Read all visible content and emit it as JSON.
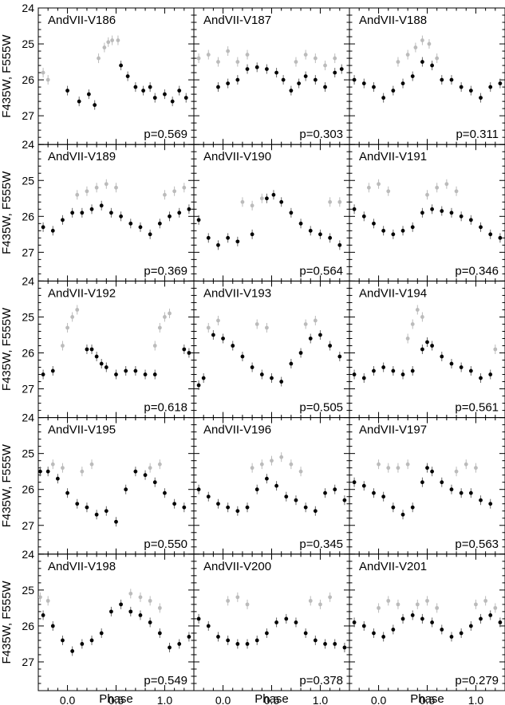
{
  "figure": {
    "ylabel": "F435W, F555W",
    "xlabel": "Phase",
    "colors": {
      "f555w": "#000000",
      "f435w": "#bbbbbb",
      "frame": "#000000"
    }
  },
  "chart_data": {
    "type": "scatter",
    "layout": "5x3 panel grid",
    "description_axes": "x = phase, y = magnitude (inverted)",
    "xlim": [
      -0.3,
      1.3
    ],
    "ylim": [
      27.8,
      24.0
    ],
    "xticks": [
      0.0,
      0.5,
      1.0
    ],
    "xtick_labels": [
      "0.0",
      "0.5",
      "1.0"
    ],
    "yticks": [
      24,
      25,
      26,
      27
    ],
    "ytick_labels": [
      "24",
      "25",
      "26",
      "27"
    ],
    "panels": [
      {
        "name": "AndVII-V186",
        "period": "p=0.569",
        "f555w": {
          "x": [
            0.0,
            0.12,
            0.22,
            0.28,
            0.55,
            0.62,
            0.7,
            0.78,
            0.85,
            0.9,
            1.0,
            1.08,
            1.15,
            1.22
          ],
          "y": [
            26.3,
            26.6,
            26.4,
            26.7,
            25.6,
            25.9,
            26.2,
            26.3,
            26.2,
            26.5,
            26.4,
            26.6,
            26.3,
            26.5
          ]
        },
        "f435w": {
          "x": [
            0.32,
            0.38,
            0.42,
            0.46,
            0.52,
            -0.25,
            -0.2
          ],
          "y": [
            25.4,
            25.1,
            24.95,
            24.9,
            24.9,
            25.8,
            26.0
          ]
        }
      },
      {
        "name": "AndVII-V187",
        "period": "p=0.303",
        "f555w": {
          "x": [
            -0.05,
            0.05,
            0.15,
            0.25,
            0.35,
            0.45,
            0.55,
            0.62,
            0.7,
            0.78,
            0.85,
            0.95,
            1.05,
            1.15,
            1.22
          ],
          "y": [
            26.2,
            26.1,
            26.0,
            25.7,
            25.65,
            25.7,
            25.8,
            26.0,
            26.3,
            26.1,
            25.9,
            26.0,
            26.2,
            25.8,
            25.7
          ]
        },
        "f435w": {
          "x": [
            -0.25,
            -0.15,
            -0.05,
            0.05,
            0.15,
            0.25,
            0.75,
            0.85,
            0.95,
            1.05,
            1.15
          ],
          "y": [
            25.4,
            25.3,
            25.5,
            25.2,
            25.5,
            25.3,
            25.5,
            25.3,
            25.4,
            25.6,
            25.4
          ]
        }
      },
      {
        "name": "AndVII-V188",
        "period": "p=0.311",
        "f555w": {
          "x": [
            -0.25,
            -0.15,
            -0.05,
            0.05,
            0.15,
            0.25,
            0.35,
            0.45,
            0.55,
            0.65,
            0.75,
            0.85,
            0.95,
            1.05,
            1.15,
            1.25
          ],
          "y": [
            26.0,
            26.1,
            26.2,
            26.5,
            26.3,
            26.1,
            25.9,
            25.5,
            25.6,
            26.0,
            26.0,
            26.2,
            26.3,
            26.5,
            26.2,
            26.1
          ]
        },
        "f435w": {
          "x": [
            0.2,
            0.3,
            0.38,
            0.45,
            0.52,
            0.6
          ],
          "y": [
            25.5,
            25.3,
            25.1,
            24.9,
            25.0,
            25.4
          ]
        }
      },
      {
        "name": "AndVII-V189",
        "period": "p=0.369",
        "f555w": {
          "x": [
            -0.25,
            -0.15,
            -0.05,
            0.05,
            0.15,
            0.25,
            0.35,
            0.45,
            0.55,
            0.65,
            0.75,
            0.85,
            0.95,
            1.05,
            1.15,
            1.25
          ],
          "y": [
            26.3,
            26.4,
            26.1,
            25.9,
            25.9,
            25.8,
            25.7,
            25.9,
            26.0,
            26.2,
            26.3,
            26.5,
            26.2,
            26.0,
            25.9,
            25.8
          ]
        },
        "f435w": {
          "x": [
            0.1,
            0.2,
            0.3,
            0.4,
            0.5,
            1.0,
            1.1,
            1.2
          ],
          "y": [
            25.4,
            25.3,
            25.2,
            25.1,
            25.2,
            25.4,
            25.3,
            25.2
          ]
        }
      },
      {
        "name": "AndVII-V190",
        "period": "p=0.564",
        "f555w": {
          "x": [
            -0.25,
            -0.15,
            -0.05,
            0.05,
            0.15,
            0.3,
            0.45,
            0.52,
            0.6,
            0.7,
            0.8,
            0.9,
            1.0,
            1.1,
            1.2
          ],
          "y": [
            26.1,
            26.6,
            26.8,
            26.6,
            26.7,
            26.5,
            25.5,
            25.4,
            25.6,
            25.9,
            26.2,
            26.4,
            26.5,
            26.6,
            26.8
          ]
        },
        "f435w": {
          "x": [
            0.2,
            0.3,
            0.4,
            1.1,
            1.2
          ],
          "y": [
            25.6,
            25.7,
            25.5,
            25.6,
            25.6
          ]
        }
      },
      {
        "name": "AndVII-V191",
        "period": "p=0.346",
        "f555w": {
          "x": [
            -0.25,
            -0.15,
            -0.05,
            0.05,
            0.15,
            0.25,
            0.35,
            0.45,
            0.55,
            0.65,
            0.75,
            0.85,
            0.95,
            1.05,
            1.15,
            1.25
          ],
          "y": [
            25.8,
            26.0,
            26.2,
            26.4,
            26.5,
            26.4,
            26.3,
            25.9,
            25.8,
            25.85,
            25.9,
            26.0,
            26.1,
            26.3,
            26.5,
            26.6
          ]
        },
        "f435w": {
          "x": [
            -0.1,
            0.0,
            0.1,
            0.5,
            0.6,
            0.7,
            0.8
          ],
          "y": [
            25.2,
            25.1,
            25.3,
            25.4,
            25.2,
            25.1,
            25.3
          ]
        }
      },
      {
        "name": "AndVII-V192",
        "period": "p=0.618",
        "f555w": {
          "x": [
            -0.25,
            -0.15,
            0.2,
            0.25,
            0.3,
            0.35,
            0.4,
            0.5,
            0.6,
            0.7,
            0.8,
            0.9,
            1.2,
            1.25
          ],
          "y": [
            26.6,
            26.5,
            25.9,
            25.9,
            26.1,
            26.3,
            26.4,
            26.6,
            26.5,
            26.5,
            26.6,
            26.6,
            25.9,
            26.0
          ]
        },
        "f435w": {
          "x": [
            -0.05,
            0.0,
            0.05,
            0.1,
            0.9,
            0.95,
            1.0,
            1.05
          ],
          "y": [
            25.8,
            25.3,
            25.0,
            24.8,
            25.8,
            25.3,
            25.0,
            24.9
          ]
        }
      },
      {
        "name": "AndVII-V193",
        "period": "p=0.505",
        "f555w": {
          "x": [
            -0.25,
            -0.2,
            -0.1,
            0.0,
            0.1,
            0.2,
            0.3,
            0.4,
            0.5,
            0.6,
            0.7,
            0.8,
            0.9,
            1.0,
            1.1,
            1.2
          ],
          "y": [
            26.9,
            26.7,
            25.5,
            25.6,
            25.8,
            26.1,
            26.4,
            26.6,
            26.7,
            26.8,
            26.3,
            26.0,
            25.6,
            25.5,
            25.8,
            26.1
          ]
        },
        "f435w": {
          "x": [
            -0.15,
            -0.05,
            0.35,
            0.45,
            0.85,
            0.95
          ],
          "y": [
            25.3,
            25.1,
            25.2,
            25.3,
            25.2,
            25.1
          ]
        }
      },
      {
        "name": "AndVII-V194",
        "period": "p=0.561",
        "f555w": {
          "x": [
            -0.25,
            -0.15,
            -0.05,
            0.05,
            0.15,
            0.25,
            0.35,
            0.45,
            0.5,
            0.55,
            0.65,
            0.75,
            0.85,
            0.95,
            1.05,
            1.15
          ],
          "y": [
            26.6,
            26.7,
            26.5,
            26.4,
            26.5,
            26.6,
            26.5,
            25.9,
            25.7,
            25.8,
            26.1,
            26.3,
            26.4,
            26.5,
            26.7,
            26.6
          ]
        },
        "f435w": {
          "x": [
            0.3,
            0.35,
            0.4,
            0.45,
            1.2
          ],
          "y": [
            25.6,
            25.2,
            24.8,
            25.0,
            25.9
          ]
        }
      },
      {
        "name": "AndVII-V195",
        "period": "p=0.550",
        "f555w": {
          "x": [
            -0.28,
            -0.2,
            -0.1,
            0.0,
            0.1,
            0.2,
            0.3,
            0.4,
            0.5,
            0.6,
            0.7,
            0.8,
            0.9,
            1.0,
            1.1,
            1.2
          ],
          "y": [
            25.5,
            25.5,
            25.7,
            26.1,
            26.4,
            26.5,
            26.7,
            26.6,
            26.9,
            26.0,
            25.5,
            25.6,
            25.8,
            26.1,
            26.4,
            26.5
          ]
        },
        "f435w": {
          "x": [
            -0.15,
            -0.05,
            0.15,
            0.25,
            0.85,
            0.95
          ],
          "y": [
            25.3,
            25.4,
            25.5,
            25.3,
            25.4,
            25.3
          ]
        }
      },
      {
        "name": "AndVII-V196",
        "period": "p=0.345",
        "f555w": {
          "x": [
            -0.25,
            -0.15,
            -0.05,
            0.05,
            0.15,
            0.25,
            0.35,
            0.45,
            0.55,
            0.65,
            0.75,
            0.85,
            0.95,
            1.05,
            1.15,
            1.25
          ],
          "y": [
            26.0,
            26.2,
            26.4,
            26.5,
            26.6,
            26.5,
            26.0,
            25.7,
            25.9,
            26.2,
            26.3,
            26.5,
            26.6,
            26.1,
            26.0,
            26.3
          ]
        },
        "f435w": {
          "x": [
            0.3,
            0.4,
            0.5,
            0.6,
            0.7,
            0.8
          ],
          "y": [
            25.4,
            25.3,
            25.2,
            25.1,
            25.3,
            25.5
          ]
        }
      },
      {
        "name": "AndVII-V197",
        "period": "p=0.563",
        "f555w": {
          "x": [
            -0.25,
            -0.15,
            -0.05,
            0.05,
            0.15,
            0.25,
            0.35,
            0.45,
            0.5,
            0.55,
            0.65,
            0.75,
            0.85,
            0.95,
            1.05,
            1.15
          ],
          "y": [
            25.8,
            25.9,
            26.1,
            26.2,
            26.5,
            26.7,
            26.5,
            25.8,
            25.4,
            25.5,
            25.8,
            26.0,
            26.1,
            26.1,
            26.3,
            26.4
          ]
        },
        "f435w": {
          "x": [
            0.0,
            0.1,
            0.2,
            0.3,
            0.8,
            0.9,
            1.0
          ],
          "y": [
            25.3,
            25.4,
            25.4,
            25.3,
            25.5,
            25.3,
            25.4
          ]
        }
      },
      {
        "name": "AndVII-V198",
        "period": "p=0.549",
        "f555w": {
          "x": [
            -0.25,
            -0.15,
            -0.05,
            0.05,
            0.15,
            0.25,
            0.35,
            0.45,
            0.55,
            0.65,
            0.75,
            0.85,
            0.95,
            1.05,
            1.15,
            1.25
          ],
          "y": [
            25.7,
            26.0,
            26.4,
            26.7,
            26.5,
            26.4,
            26.2,
            25.6,
            25.4,
            25.6,
            25.7,
            25.9,
            26.2,
            26.6,
            26.5,
            26.3
          ]
        },
        "f435w": {
          "x": [
            -0.28,
            -0.2,
            0.65,
            0.75,
            0.85,
            0.95
          ],
          "y": [
            25.2,
            25.3,
            25.1,
            25.2,
            25.3,
            25.5
          ]
        }
      },
      {
        "name": "AndVII-V200",
        "period": "p=0.378",
        "f555w": {
          "x": [
            -0.25,
            -0.15,
            -0.05,
            0.05,
            0.15,
            0.25,
            0.35,
            0.45,
            0.55,
            0.65,
            0.75,
            0.85,
            0.95,
            1.05,
            1.15,
            1.25
          ],
          "y": [
            25.8,
            26.0,
            26.3,
            26.4,
            26.5,
            26.5,
            26.4,
            26.2,
            25.9,
            25.8,
            25.9,
            26.2,
            26.4,
            26.5,
            26.5,
            26.6
          ]
        },
        "f435w": {
          "x": [
            0.05,
            0.15,
            0.25,
            0.9,
            1.0,
            1.1
          ],
          "y": [
            25.3,
            25.2,
            25.4,
            25.3,
            25.4,
            25.2
          ]
        }
      },
      {
        "name": "AndVII-V201",
        "period": "p=0.279",
        "f555w": {
          "x": [
            -0.25,
            -0.15,
            -0.05,
            0.05,
            0.15,
            0.25,
            0.35,
            0.45,
            0.55,
            0.65,
            0.75,
            0.85,
            0.95,
            1.05,
            1.15,
            1.25
          ],
          "y": [
            25.9,
            26.0,
            26.2,
            26.3,
            26.1,
            25.8,
            25.7,
            25.8,
            25.9,
            26.1,
            26.3,
            26.2,
            26.0,
            25.8,
            25.7,
            25.9
          ]
        },
        "f435w": {
          "x": [
            0.0,
            0.1,
            0.2,
            0.4,
            0.5,
            0.6,
            1.0,
            1.1,
            1.2
          ],
          "y": [
            25.5,
            25.3,
            25.4,
            25.4,
            25.3,
            25.5,
            25.4,
            25.3,
            25.5
          ]
        }
      }
    ]
  }
}
